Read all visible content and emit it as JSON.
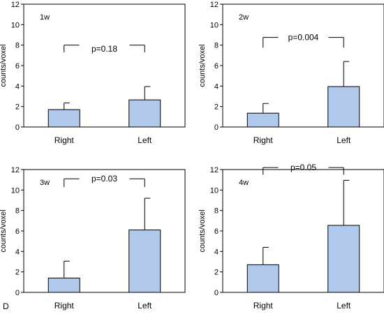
{
  "figure_label": "D",
  "bar_color": "#afc8ec",
  "chart_data": [
    {
      "type": "bar",
      "title": "1w",
      "ylabel": "counts/voxel",
      "categories": [
        "Right",
        "Left"
      ],
      "values": [
        1.7,
        2.65
      ],
      "errors": [
        0.65,
        1.3
      ],
      "ylim": [
        0,
        12
      ],
      "yticks": [
        "0",
        "2",
        "4",
        "6",
        "8",
        "10",
        "12"
      ],
      "annotation": "p=0.18",
      "annotation_y": 7.65,
      "bracket_top_y": 8.0,
      "bracket_bottom_y": 7.3
    },
    {
      "type": "bar",
      "title": "2w",
      "ylabel": "counts/voxel",
      "categories": [
        "Right",
        "Left"
      ],
      "values": [
        1.35,
        3.95
      ],
      "errors": [
        0.95,
        2.45
      ],
      "ylim": [
        0,
        12
      ],
      "yticks": [
        "0",
        "2",
        "4",
        "6",
        "8",
        "10",
        "12"
      ],
      "annotation": "p=0.004",
      "annotation_y": 8.75,
      "bracket_top_y": 8.75,
      "bracket_bottom_y": 7.75
    },
    {
      "type": "bar",
      "title": "3w",
      "ylabel": "counts/voxel",
      "categories": [
        "Right",
        "Left"
      ],
      "values": [
        1.4,
        6.1
      ],
      "errors": [
        1.65,
        3.1
      ],
      "ylim": [
        0,
        12
      ],
      "yticks": [
        "0",
        "2",
        "4",
        "6",
        "8",
        "10",
        "12"
      ],
      "annotation": "p=0.03",
      "annotation_y": 11.1,
      "bracket_top_y": 11.1,
      "bracket_bottom_y": 10.3
    },
    {
      "type": "bar",
      "title": "4w",
      "ylabel": "counts/voxel",
      "categories": [
        "Right",
        "Left"
      ],
      "values": [
        2.7,
        6.55
      ],
      "errors": [
        1.7,
        4.4
      ],
      "ylim": [
        0,
        12
      ],
      "yticks": [
        "0",
        "2",
        "4",
        "6",
        "8",
        "10",
        "12"
      ],
      "annotation": "p=0.05",
      "annotation_y": 12.2,
      "bracket_top_y": 12.2,
      "bracket_bottom_y": 11.5
    }
  ]
}
